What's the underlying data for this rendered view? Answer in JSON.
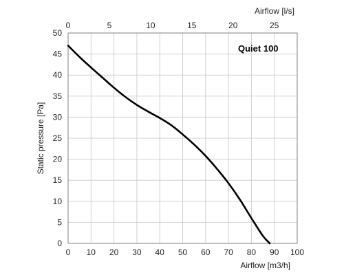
{
  "chart_data": {
    "type": "line",
    "annotation": "Quiet 100",
    "xlabel": "Airflow [m3/h]",
    "ylabel": "Static pressure [Pa]",
    "x2label": "Airflow  [l/s]",
    "xlim": [
      0,
      100
    ],
    "ylim": [
      0,
      50
    ],
    "x2lim": [
      0,
      27.78
    ],
    "xticks": [
      0,
      10,
      20,
      30,
      40,
      50,
      60,
      70,
      80,
      90,
      100
    ],
    "yticks": [
      0,
      5,
      10,
      15,
      20,
      25,
      30,
      35,
      40,
      45,
      50
    ],
    "x2ticks": [
      0,
      5,
      10,
      15,
      20,
      25
    ],
    "grid": true,
    "series": [
      {
        "color": "#000000",
        "x": [
          0,
          5,
          10,
          15,
          20,
          25,
          30,
          35,
          40,
          45,
          50,
          55,
          60,
          65,
          70,
          75,
          80,
          85,
          88
        ],
        "y": [
          47,
          44.3,
          41.8,
          39.4,
          37.0,
          34.8,
          32.9,
          31.3,
          29.8,
          28.1,
          25.9,
          23.5,
          20.8,
          17.7,
          14.3,
          10.4,
          6.0,
          1.8,
          0
        ]
      }
    ]
  }
}
